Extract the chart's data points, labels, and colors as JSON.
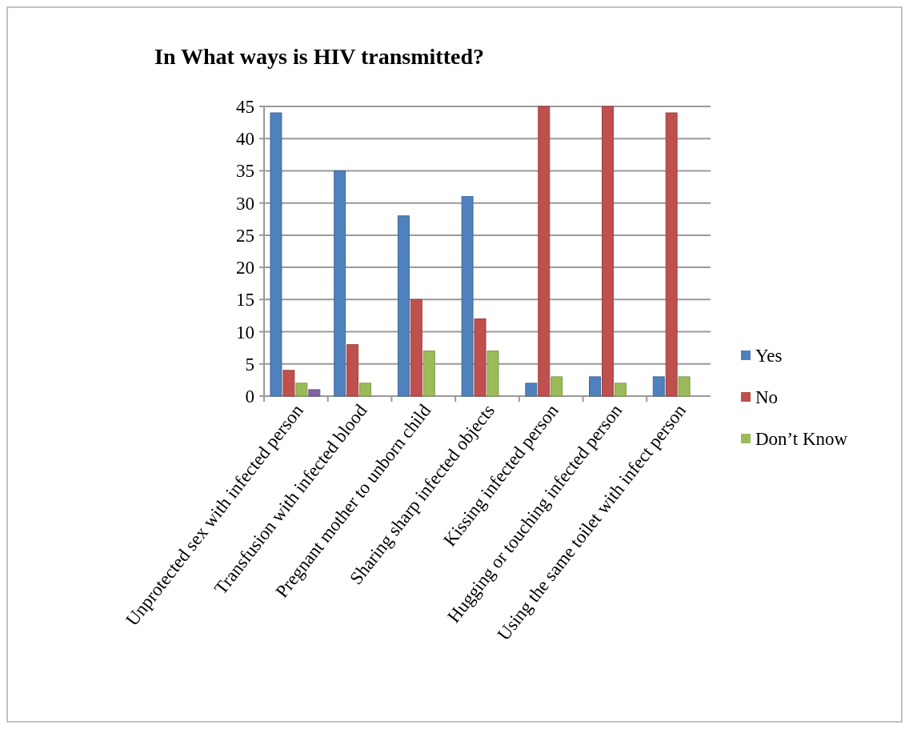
{
  "chart_data": {
    "type": "bar",
    "title": "In What ways is HIV transmitted?",
    "categories": [
      "Unprotected sex with infected person",
      "Transfusion with infected blood",
      "Pregnant mother to unborn child",
      "Sharing sharp infected objects",
      "Kissing infected person",
      "Hugging or touching infected person",
      "Using the same toilet with infect person"
    ],
    "series": [
      {
        "name": "Yes",
        "color": "#4f81bd",
        "values": [
          44,
          35,
          28,
          31,
          2,
          3,
          3
        ]
      },
      {
        "name": "No",
        "color": "#c0504d",
        "values": [
          4,
          8,
          15,
          12,
          45,
          45,
          44
        ]
      },
      {
        "name": "Don’t Know",
        "color": "#9bbb59",
        "values": [
          2,
          2,
          7,
          7,
          3,
          2,
          3
        ]
      },
      {
        "color": "#8064a2",
        "values": [
          1,
          null,
          null,
          null,
          null,
          null,
          null
        ]
      }
    ],
    "ylim": [
      0,
      45
    ],
    "yticks": [
      0,
      5,
      10,
      15,
      20,
      25,
      30,
      35,
      40,
      45
    ],
    "grid": "y",
    "legend": "right"
  }
}
